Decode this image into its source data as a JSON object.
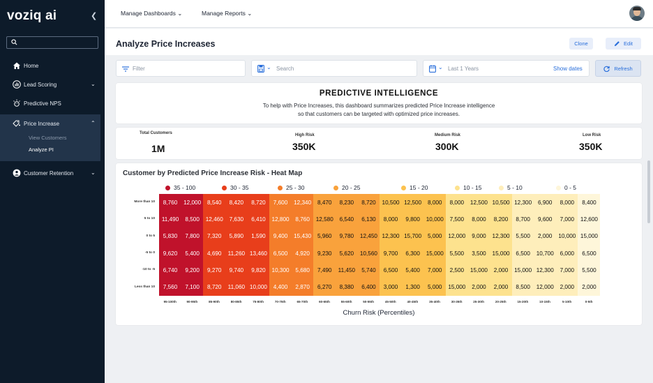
{
  "sidebar": {
    "logo": "voziq ai",
    "search_placeholder": "",
    "items": [
      {
        "label": "Home"
      },
      {
        "label": "Lead Scoring"
      },
      {
        "label": "Predictive NPS"
      },
      {
        "label": "Price Increase"
      },
      {
        "label": "Customer Retention"
      }
    ],
    "sub_items": [
      {
        "label": "View Customers"
      },
      {
        "label": "Analyze PI"
      }
    ]
  },
  "topbar": {
    "menus": [
      {
        "label": "Manage Dashboards"
      },
      {
        "label": "Manage Reports"
      }
    ]
  },
  "header": {
    "title": "Analyze Price Increases",
    "clone_label": "Clone",
    "edit_label": "Edit"
  },
  "filters": {
    "filter_placeholder": "Filter",
    "search_placeholder": "Search",
    "date_range": "Last 1 Years",
    "show_dates": "Show dates",
    "refresh": "Refresh"
  },
  "intelligence": {
    "title": "PREDICTIVE  INTELLIGENCE",
    "description": "To help with Price Increases, this dashboard summarizes predicted Price Increase intelligence so that customers can be targeted with optimized price increases."
  },
  "stats": [
    {
      "label": "Total Customers",
      "value": "1M"
    },
    {
      "label": "High Risk",
      "value": "350K"
    },
    {
      "label": "Medium Risk",
      "value": "300K"
    },
    {
      "label": "Low Risk",
      "value": "350K"
    }
  ],
  "chart_data": {
    "type": "heatmap",
    "title": "Customer by Predicted Price Increase Risk  - Heat Map",
    "xlabel": "Churn Risk (Percentiles)",
    "legend": [
      {
        "label": "35 - 100",
        "color": "#c0122b"
      },
      {
        "label": "30 - 35",
        "color": "#e83e1b"
      },
      {
        "label": "25 - 30",
        "color": "#f47d2a"
      },
      {
        "label": "20 - 25",
        "color": "#f9a23c"
      },
      {
        "label": "15 - 20",
        "color": "#fcc24f"
      },
      {
        "label": "10 - 15",
        "color": "#fde28e"
      },
      {
        "label": "5 - 10",
        "color": "#feeebb"
      },
      {
        "label": "0 - 5",
        "color": "#fef6da"
      }
    ],
    "rows": [
      "More than 10",
      "5 to 10",
      "0 to 5",
      "-5 to 0",
      "-10 to -5",
      "Less than 10"
    ],
    "columns": [
      "95-100th",
      "90-95th",
      "85-90th",
      "80-85th",
      "75-80th",
      "70-75th",
      "65-70th",
      "60-65th",
      "55-60th",
      "50-55th",
      "45-50th",
      "40-45th",
      "35-40th",
      "30-35th",
      "25-30th",
      "20-25th",
      "15-20th",
      "10-15th",
      "5-10th",
      "0-5th"
    ],
    "values": [
      [
        "8,760",
        "12,000",
        "8,540",
        "8,420",
        "8,720",
        "7,600",
        "12,340",
        "8,470",
        "8,230",
        "8,720",
        "10,500",
        "12,500",
        "8,000",
        "8,000",
        "12,500",
        "10,500",
        "12,300",
        "6,900",
        "8,000",
        "8,400"
      ],
      [
        "11,490",
        "8,500",
        "12,460",
        "7,630",
        "6,410",
        "12,800",
        "8,760",
        "12,580",
        "6,540",
        "6,130",
        "8,000",
        "9,800",
        "10,000",
        "7,500",
        "8,000",
        "8,200",
        "8,700",
        "9,600",
        "7,000",
        "12,600"
      ],
      [
        "5,830",
        "7,800",
        "7,320",
        "5,890",
        "1,590",
        "9,400",
        "15,430",
        "5,960",
        "9,780",
        "12,450",
        "12,300",
        "15,700",
        "5,000",
        "12,000",
        "9,000",
        "12,300",
        "5,500",
        "2,000",
        "10,000",
        "15,000"
      ],
      [
        "9,620",
        "5,400",
        "4,690",
        "11,260",
        "13,460",
        "6,500",
        "4,920",
        "9,230",
        "5,620",
        "10,560",
        "9,700",
        "6,300",
        "15,000",
        "5,500",
        "3,500",
        "15,000",
        "6,500",
        "10,700",
        "6,000",
        "6,500"
      ],
      [
        "6,740",
        "9,200",
        "9,270",
        "9,740",
        "9,820",
        "10,300",
        "5,680",
        "7,490",
        "11,450",
        "5,740",
        "6,500",
        "5,400",
        "7,000",
        "2,500",
        "15,000",
        "2,000",
        "15,000",
        "12,300",
        "7,000",
        "5,500"
      ],
      [
        "7,560",
        "7,100",
        "8,720",
        "11,060",
        "10,000",
        "4,400",
        "2,870",
        "6,270",
        "8,380",
        "6,400",
        "3,000",
        "1,300",
        "5,000",
        "15,000",
        "2,000",
        "2,000",
        "8,500",
        "12,000",
        "2,000",
        "2,000"
      ]
    ],
    "column_colors": [
      "#c0122b",
      "#c0122b",
      "#e83e1b",
      "#e83e1b",
      "#e83e1b",
      "#f47d2a",
      "#f47d2a",
      "#f9a23c",
      "#f9a23c",
      "#f9a23c",
      "#fcc24f",
      "#fcc24f",
      "#fcc24f",
      "#fde28e",
      "#fde28e",
      "#fde28e",
      "#feeebb",
      "#feeebb",
      "#feeebb",
      "#fef6da"
    ]
  }
}
